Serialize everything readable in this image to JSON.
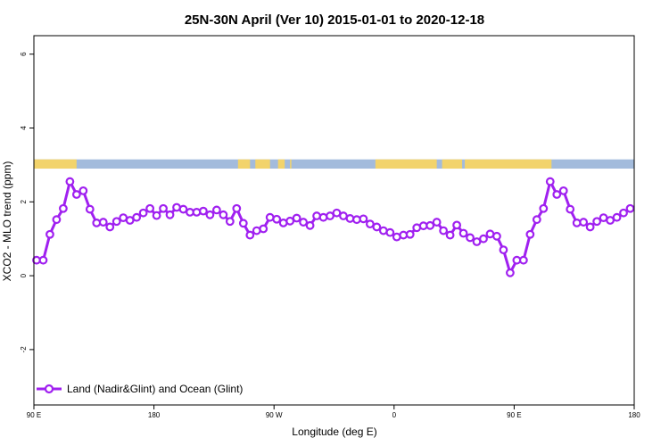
{
  "chart_data": {
    "type": "line",
    "title": "25N-30N April (Ver 10)   2015-01-01 to 2020-12-18",
    "xlabel": "Longitude (deg E)",
    "ylabel": "XCO2 - MLO trend (ppm)",
    "xlim": [
      90,
      540
    ],
    "ylim": [
      -3.5,
      6.5
    ],
    "x_ticks": [
      {
        "value": 90,
        "label": "90 E"
      },
      {
        "value": 180,
        "label": "180"
      },
      {
        "value": 270,
        "label": "90 W"
      },
      {
        "value": 360,
        "label": "0"
      },
      {
        "value": 450,
        "label": "90 E"
      },
      {
        "value": 540,
        "label": "180"
      }
    ],
    "y_ticks": [
      {
        "value": -2,
        "label": "-2"
      },
      {
        "value": 0,
        "label": "0"
      },
      {
        "value": 2,
        "label": "2"
      },
      {
        "value": 4,
        "label": "4"
      },
      {
        "value": 6,
        "label": "6"
      }
    ],
    "grid": false,
    "legend_position": "bottom-left",
    "land_ocean_band": {
      "y_range": [
        2.9,
        3.15
      ],
      "land_color": "#f2d36b",
      "ocean_color": "#a3bbdc",
      "land_segments": [
        [
          90,
          122
        ],
        [
          243,
          252
        ],
        [
          256,
          267
        ],
        [
          273,
          278
        ],
        [
          282,
          283
        ],
        [
          346,
          392
        ],
        [
          396,
          411
        ],
        [
          413,
          478
        ]
      ]
    },
    "series": [
      {
        "name": "Land (Nadir&Glint) and Ocean (Glint)",
        "color": "#a020f0",
        "x": [
          92,
          97,
          102,
          107,
          112,
          117,
          122,
          127,
          132,
          137,
          142,
          147,
          152,
          157,
          162,
          167,
          172,
          177,
          182,
          187,
          192,
          197,
          202,
          207,
          212,
          217,
          222,
          227,
          232,
          237,
          242,
          247,
          252,
          257,
          262,
          267,
          272,
          277,
          282,
          287,
          292,
          297,
          302,
          307,
          312,
          317,
          322,
          327,
          332,
          337,
          342,
          347,
          352,
          357,
          362,
          367,
          372,
          377,
          382,
          387,
          392,
          397,
          402,
          407,
          412,
          417,
          422,
          427,
          432,
          437,
          442,
          447,
          452,
          457,
          462,
          467,
          472,
          477,
          482,
          487,
          492,
          497,
          502,
          507,
          512,
          517,
          522,
          527,
          532,
          537
        ],
        "y": [
          0.42,
          0.42,
          1.12,
          1.52,
          1.82,
          2.55,
          2.2,
          2.3,
          1.8,
          1.43,
          1.45,
          1.32,
          1.47,
          1.57,
          1.5,
          1.58,
          1.7,
          1.82,
          1.63,
          1.82,
          1.65,
          1.85,
          1.8,
          1.72,
          1.72,
          1.75,
          1.65,
          1.78,
          1.65,
          1.47,
          1.82,
          1.42,
          1.1,
          1.22,
          1.27,
          1.58,
          1.53,
          1.43,
          1.48,
          1.56,
          1.45,
          1.36,
          1.62,
          1.58,
          1.62,
          1.7,
          1.62,
          1.55,
          1.52,
          1.54,
          1.4,
          1.32,
          1.22,
          1.17,
          1.05,
          1.1,
          1.12,
          1.3,
          1.35,
          1.36,
          1.45,
          1.22,
          1.1,
          1.37,
          1.15,
          1.03,
          0.92,
          1.0,
          1.13,
          1.07,
          0.7,
          0.08,
          0.42,
          0.42,
          1.12,
          1.52,
          1.82,
          2.55,
          2.2,
          2.3,
          1.8,
          1.43,
          1.45,
          1.32,
          1.47,
          1.57,
          1.5,
          1.58,
          1.7,
          1.82
        ]
      }
    ]
  }
}
